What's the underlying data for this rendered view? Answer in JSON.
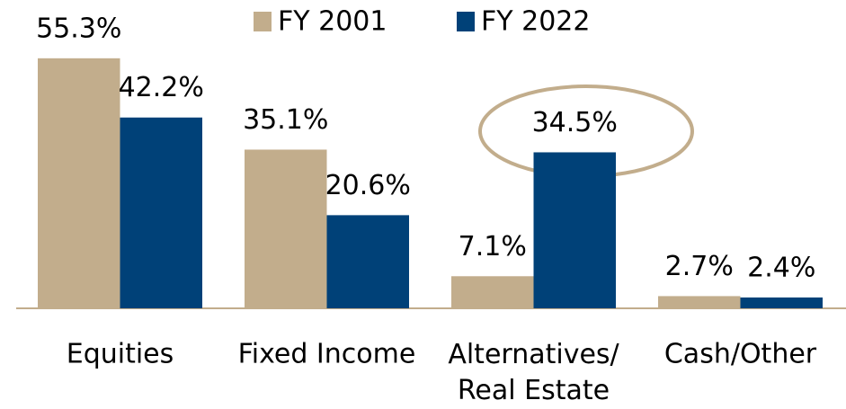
{
  "chart_data": {
    "type": "bar",
    "categories": [
      "Equities",
      "Fixed Income",
      "Alternatives/\nReal Estate",
      "Cash/Other"
    ],
    "series": [
      {
        "name": "FY 2001",
        "color": "#c2ad8c",
        "values": [
          55.3,
          35.1,
          7.1,
          2.7
        ],
        "value_labels": [
          "55.3%",
          "35.1%",
          "7.1%",
          "2.7%"
        ]
      },
      {
        "name": "FY 2022",
        "color": "#004178",
        "values": [
          42.2,
          20.6,
          34.5,
          2.4
        ],
        "value_labels": [
          "42.2%",
          "20.6%",
          "34.5%",
          "2.4%"
        ]
      }
    ]
  }
}
